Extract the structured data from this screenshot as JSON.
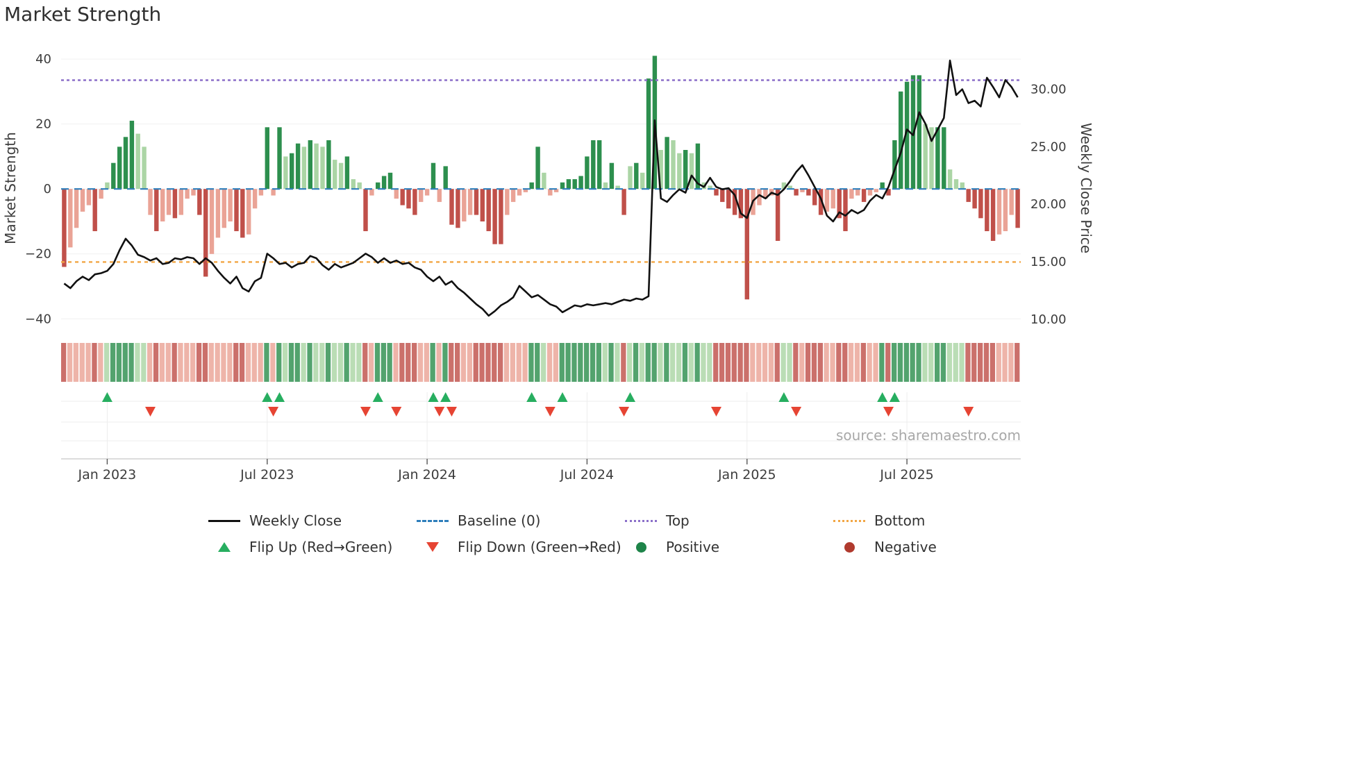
{
  "title": "Market Strength",
  "source": "source: sharemaestro.com",
  "colors": {
    "bar_positive_strong": "#2d8f4e",
    "bar_positive_weak": "#abd5a5",
    "bar_negative_strong": "#c0504a",
    "bar_negative_weak": "#eaa396",
    "price_line": "#111111",
    "baseline": "#2e7ebb",
    "top_line": "#8b6fc9",
    "bottom_line": "#f2a644",
    "flip_up": "#27ae60",
    "flip_down": "#e64433",
    "positive_dot": "#1e8449",
    "negative_dot": "#b03a2e",
    "grid": "#f0f0f0",
    "axis_text": "#3c3c3c",
    "source_text": "#a8a8a8"
  },
  "legend": {
    "weekly_close": "Weekly Close",
    "baseline": "Baseline (0)",
    "top": "Top",
    "bottom": "Bottom",
    "flip_up": "Flip Up (Red→Green)",
    "flip_down": "Flip Down (Green→Red)",
    "positive": "Positive",
    "negative": "Negative"
  },
  "chart_data": {
    "type": "bar+line",
    "title": "Market Strength",
    "n_points": 156,
    "left_axis": {
      "label": "Market Strength",
      "ticks": [
        40,
        20,
        0,
        -20,
        -40
      ],
      "tick_labels": [
        "40",
        "20",
        "0",
        "−20",
        "−40"
      ],
      "range": [
        -44,
        44.5
      ]
    },
    "right_axis": {
      "label": "Weekly Close Price",
      "ticks": [
        30,
        25,
        20,
        15,
        10
      ],
      "tick_labels": [
        "30.00",
        "25.00",
        "20.00",
        "15.00",
        "10.00"
      ],
      "range": [
        8.9,
        33.9
      ]
    },
    "x_ticks": [
      {
        "label": "Jan 2023",
        "index": 7
      },
      {
        "label": "Jul 2023",
        "index": 33
      },
      {
        "label": "Jan 2024",
        "index": 59
      },
      {
        "label": "Jul 2024",
        "index": 85
      },
      {
        "label": "Jan 2025",
        "index": 111
      },
      {
        "label": "Jul 2025",
        "index": 137
      }
    ],
    "baseline_level": 0,
    "top_level": 33.5,
    "bottom_level": -22.5,
    "strength": [
      -24,
      -18,
      -12,
      -7,
      -5,
      -13,
      -3,
      2,
      8,
      13,
      16,
      21,
      17,
      13,
      -8,
      -13,
      -10,
      -8,
      -9,
      -8,
      -3,
      -2,
      -8,
      -27,
      -20,
      -15,
      -12,
      -10,
      -13,
      -15,
      -14,
      -6,
      -2,
      19,
      -2,
      19,
      10,
      11,
      14,
      13,
      15,
      14,
      13,
      15,
      9,
      8,
      10,
      3,
      2,
      -13,
      -2,
      2,
      4,
      5,
      -3,
      -5,
      -6,
      -8,
      -4,
      -2,
      8,
      -4,
      7,
      -11,
      -12,
      -10,
      -8,
      -8,
      -10,
      -13,
      -17,
      -17,
      -8,
      -4,
      -2,
      -1,
      2,
      13,
      5,
      -2,
      -1,
      2,
      3,
      3,
      4,
      10,
      15,
      15,
      2,
      8,
      1,
      -8,
      7,
      8,
      5,
      34,
      41,
      12,
      16,
      15,
      11,
      12,
      11,
      14,
      2,
      1,
      -2,
      -4,
      -6,
      -8,
      -9,
      -34,
      -8,
      -5,
      -3,
      -2,
      -16,
      2,
      1,
      -2,
      -1,
      -2,
      -5,
      -8,
      -7,
      -6,
      -9,
      -13,
      -3,
      -2,
      -4,
      -2,
      -1,
      2,
      -2,
      15,
      30,
      33,
      35,
      35,
      20,
      19,
      19,
      19,
      6,
      3,
      2,
      -4,
      -6,
      -9,
      -13,
      -16,
      -14,
      -13,
      -8,
      -12
    ],
    "weekly_close": [
      13.1,
      12.7,
      13.3,
      13.7,
      13.4,
      13.9,
      14.0,
      14.2,
      14.8,
      16.0,
      17.0,
      16.4,
      15.6,
      15.4,
      15.1,
      15.3,
      14.8,
      14.9,
      15.3,
      15.2,
      15.4,
      15.3,
      14.8,
      15.3,
      14.9,
      14.2,
      13.6,
      13.1,
      13.7,
      12.7,
      12.4,
      13.3,
      13.6,
      15.7,
      15.3,
      14.8,
      14.9,
      14.5,
      14.8,
      14.9,
      15.5,
      15.3,
      14.7,
      14.3,
      14.8,
      14.5,
      14.7,
      14.9,
      15.3,
      15.7,
      15.4,
      14.9,
      15.3,
      14.9,
      15.1,
      14.8,
      14.9,
      14.5,
      14.3,
      13.7,
      13.3,
      13.7,
      13.0,
      13.3,
      12.7,
      12.3,
      11.8,
      11.3,
      10.9,
      10.3,
      10.7,
      11.2,
      11.5,
      11.9,
      12.9,
      12.4,
      11.9,
      12.1,
      11.7,
      11.3,
      11.1,
      10.6,
      10.9,
      11.2,
      11.1,
      11.3,
      11.2,
      11.3,
      11.4,
      11.3,
      11.5,
      11.7,
      11.6,
      11.8,
      11.7,
      12.0,
      27.3,
      20.5,
      20.2,
      20.8,
      21.3,
      21.0,
      22.5,
      21.8,
      21.5,
      22.3,
      21.5,
      21.3,
      21.4,
      20.8,
      19.2,
      18.8,
      20.3,
      20.8,
      20.5,
      21.0,
      20.8,
      21.3,
      22.0,
      22.8,
      23.4,
      22.5,
      21.5,
      20.5,
      19.0,
      18.5,
      19.3,
      19.0,
      19.5,
      19.2,
      19.5,
      20.3,
      20.8,
      20.5,
      21.5,
      23.0,
      24.5,
      26.5,
      26.0,
      28.0,
      27.0,
      25.5,
      26.5,
      27.5,
      32.5,
      29.5,
      30.0,
      28.8,
      29.0,
      28.5,
      31.0,
      30.2,
      29.3,
      30.8,
      30.2,
      29.3
    ],
    "flip_up_indices": [
      7,
      33,
      35,
      51,
      60,
      62,
      76,
      81,
      92,
      117,
      133,
      135
    ],
    "flip_down_indices": [
      14,
      34,
      49,
      54,
      61,
      63,
      79,
      91,
      106,
      119,
      134,
      147
    ]
  }
}
